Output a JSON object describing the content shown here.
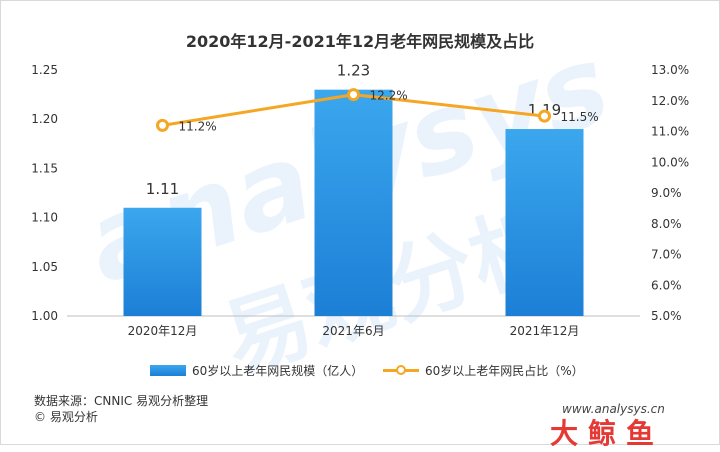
{
  "chart_data": {
    "type": "bar+line",
    "title": "2020年12月-2021年12月老年网民规模及占比",
    "categories": [
      "2020年12月",
      "2021年6月",
      "2021年12月"
    ],
    "series": [
      {
        "name": "60岁以上老年网民规模（亿人）",
        "type": "bar",
        "axis": "left",
        "values": [
          1.11,
          1.23,
          1.19
        ],
        "labels": [
          "1.11",
          "1.23",
          "1.19"
        ],
        "color": "#1f88e0"
      },
      {
        "name": "60岁以上老年网民占比（%）",
        "type": "line",
        "axis": "right",
        "values": [
          11.2,
          12.2,
          11.5
        ],
        "labels": [
          "11.2%",
          "12.2%",
          "11.5%"
        ],
        "color": "#f5a623"
      }
    ],
    "y_left": {
      "min": 1.0,
      "max": 1.25,
      "ticks": [
        "1.00",
        "1.05",
        "1.10",
        "1.15",
        "1.20",
        "1.25"
      ]
    },
    "y_right": {
      "min": 5.0,
      "max": 13.0,
      "ticks": [
        "5.0%",
        "6.0%",
        "7.0%",
        "8.0%",
        "9.0%",
        "10.0%",
        "11.0%",
        "12.0%",
        "13.0%"
      ]
    },
    "grid": false,
    "legend_position": "bottom"
  },
  "footer": {
    "source": "数据来源：CNNIC 易观分析整理",
    "copyright": "© 易观分析"
  },
  "watermark": {
    "line1": "analysys",
    "line2": "易观分析"
  },
  "logo": {
    "url": "www.analysys.cn",
    "brand": "大鲸鱼"
  }
}
